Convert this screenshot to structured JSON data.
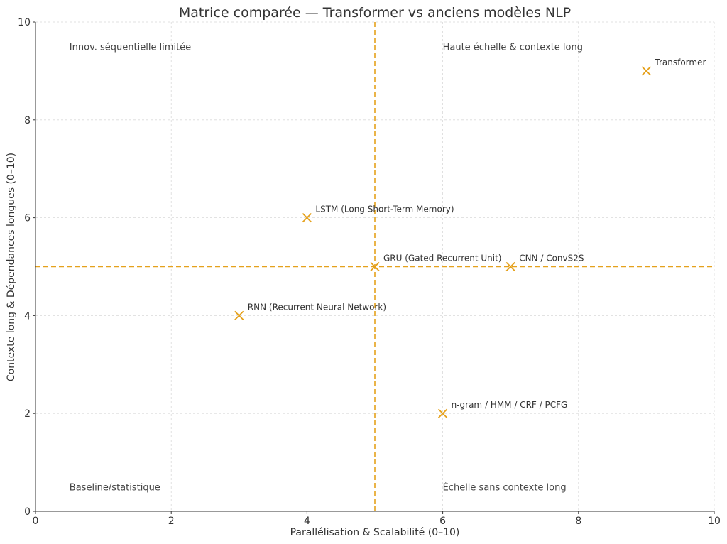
{
  "chart_data": {
    "type": "scatter",
    "title": "Matrice comparée — Transformer vs anciens modèles NLP",
    "xlabel": "Parallélisation & Scalabilité (0–10)",
    "ylabel": "Contexte long & Dépendances longues (0–10)",
    "xlim": [
      0,
      10
    ],
    "ylim": [
      0,
      10
    ],
    "xticks": [
      0,
      2,
      4,
      6,
      8,
      10
    ],
    "yticks": [
      0,
      2,
      4,
      6,
      8,
      10
    ],
    "xtick_labels": [
      "0",
      "2",
      "4",
      "6",
      "8",
      "10"
    ],
    "ytick_labels": [
      "0",
      "2",
      "4",
      "6",
      "8",
      "10"
    ],
    "grid": true,
    "reference_lines": {
      "x": 5,
      "y": 5
    },
    "marker": "x",
    "color": "#E5A11C",
    "points": [
      {
        "label": "n-gram / HMM / CRF / PCFG",
        "x": 6,
        "y": 2
      },
      {
        "label": "RNN (Recurrent Neural Network)",
        "x": 3,
        "y": 4
      },
      {
        "label": "LSTM (Long Short-Term Memory)",
        "x": 4,
        "y": 6
      },
      {
        "label": "GRU (Gated Recurrent Unit)",
        "x": 5,
        "y": 5
      },
      {
        "label": "CNN / ConvS2S",
        "x": 7,
        "y": 5
      },
      {
        "label": "Transformer",
        "x": 9,
        "y": 9
      }
    ],
    "quadrant_labels": [
      {
        "text": "Innov. séquentielle limitée",
        "x": 0.5,
        "y": 9.5
      },
      {
        "text": "Haute échelle & contexte long",
        "x": 6.0,
        "y": 9.5
      },
      {
        "text": "Baseline/statistique",
        "x": 0.5,
        "y": 0.5
      },
      {
        "text": "Échelle sans contexte long",
        "x": 6.0,
        "y": 0.5
      }
    ]
  }
}
